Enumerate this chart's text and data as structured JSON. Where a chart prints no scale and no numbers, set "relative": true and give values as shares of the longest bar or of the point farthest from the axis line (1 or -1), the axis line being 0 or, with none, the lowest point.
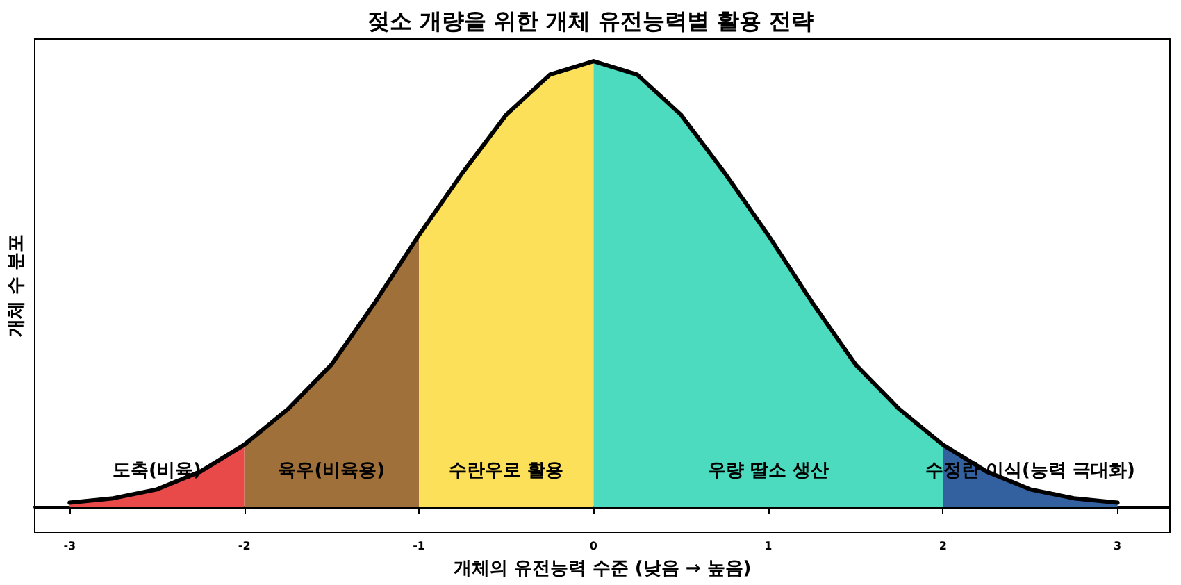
{
  "chart_data": {
    "type": "area",
    "title": "젖소 개량을 위한 개체 유전능력별 활용 전략",
    "xlabel": "개체의 유전능력 수준 (낮음 → 높음)",
    "ylabel": "개체 수 분포",
    "relative": true,
    "xlim": [
      -3.2,
      3.3
    ],
    "xticks": [
      -3,
      -2,
      -1,
      0,
      1,
      2,
      3
    ],
    "grid": false,
    "marker": "none",
    "series": [
      {
        "color": "#e84a4a",
        "x": [
          -3,
          -2.75,
          -2.5,
          -2.25,
          -2
        ],
        "values": [
          0.01,
          0.02,
          0.04,
          0.08,
          0.14
        ]
      },
      {
        "color": "#a0703a",
        "x": [
          -2,
          -1.75,
          -1.5,
          -1.25,
          -1
        ],
        "values": [
          0.14,
          0.22,
          0.32,
          0.46,
          0.61
        ]
      },
      {
        "color": "#fde05a",
        "x": [
          -1,
          -0.75,
          -0.5,
          -0.25,
          0
        ],
        "values": [
          0.61,
          0.75,
          0.88,
          0.97,
          1
        ]
      },
      {
        "color": "#4cdbbf",
        "x": [
          0,
          0.25,
          0.5,
          0.75,
          1,
          1.25,
          1.5,
          1.75,
          2
        ],
        "values": [
          1,
          0.97,
          0.88,
          0.75,
          0.61,
          0.46,
          0.32,
          0.22,
          0.14
        ]
      },
      {
        "color": "#33609f",
        "x": [
          2,
          2.25,
          2.5,
          2.75,
          3
        ],
        "values": [
          0.14,
          0.08,
          0.04,
          0.02,
          0.01
        ]
      },
      {
        "type": "line",
        "color": "#000000",
        "line_style": "solid",
        "x": [
          -3,
          -2.75,
          -2.5,
          -2.25,
          -2,
          -1.75,
          -1.5,
          -1.25,
          -1,
          -0.75,
          -0.5,
          -0.25,
          0,
          0.25,
          0.5,
          0.75,
          1,
          1.25,
          1.5,
          1.75,
          2,
          2.25,
          2.5,
          2.75,
          3
        ],
        "values": [
          0.01,
          0.02,
          0.04,
          0.08,
          0.14,
          0.22,
          0.32,
          0.46,
          0.61,
          0.75,
          0.88,
          0.97,
          1,
          0.97,
          0.88,
          0.75,
          0.61,
          0.46,
          0.32,
          0.22,
          0.14,
          0.08,
          0.04,
          0.02,
          0.01
        ]
      }
    ],
    "annotations": [
      "도축(비육)",
      "육우(비육용)",
      "수란우로 활용",
      "우량 딸소 생산",
      "수정란 이식(능력 극대화)"
    ]
  }
}
